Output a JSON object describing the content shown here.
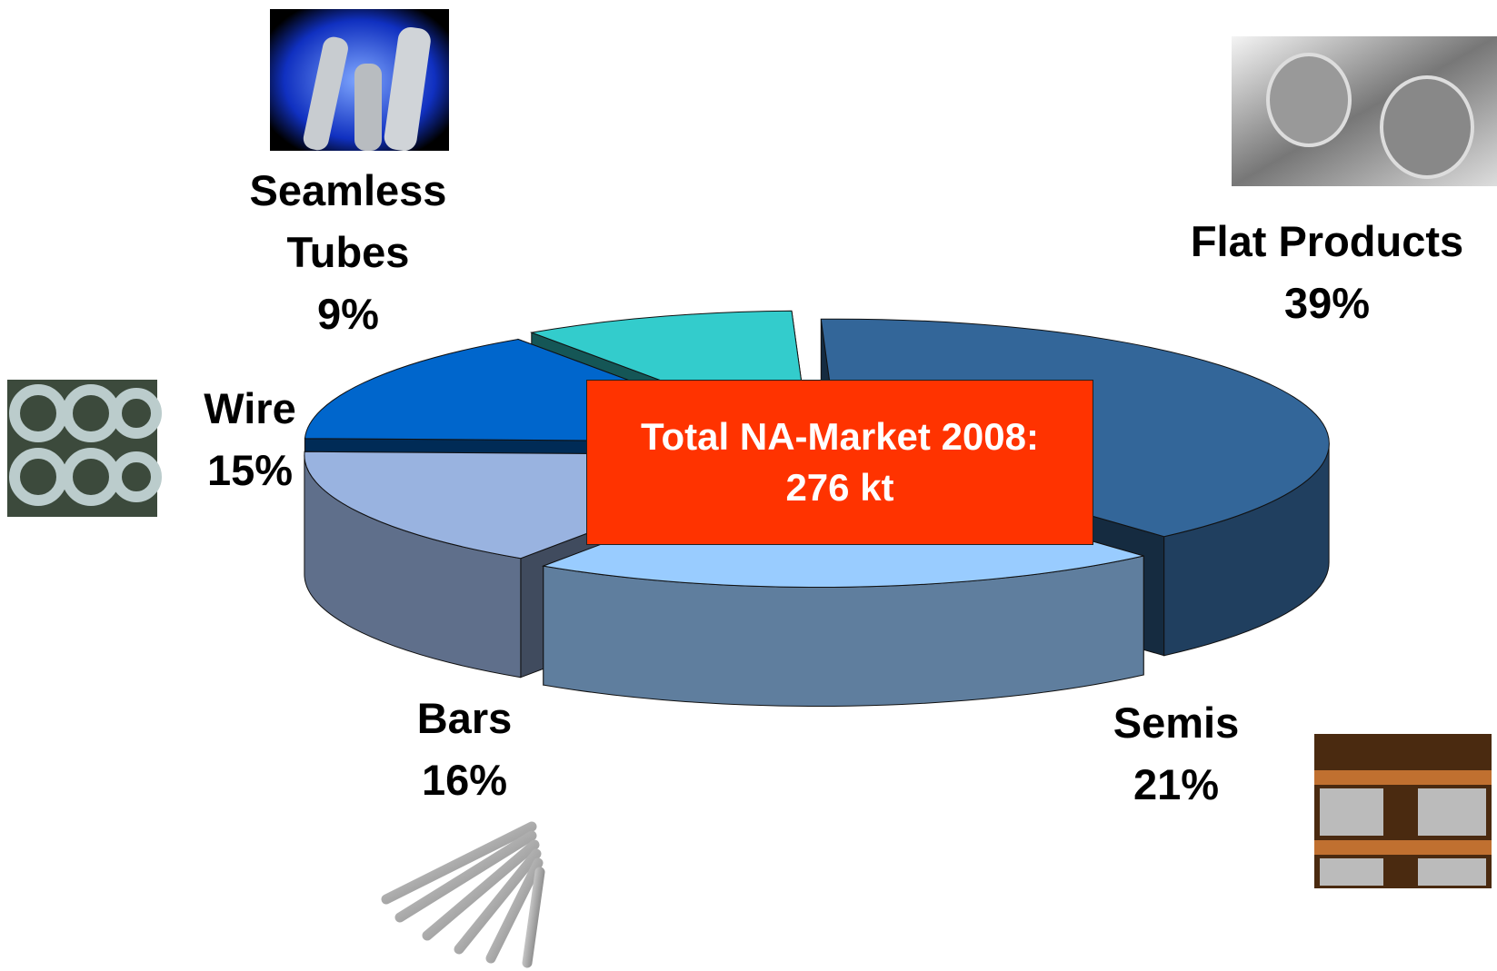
{
  "chart_data": {
    "type": "pie3d",
    "categories": [
      "Flat Products",
      "Semis",
      "Bars",
      "Wire",
      "Seamless Tubes"
    ],
    "values": [
      39,
      21,
      16,
      15,
      9
    ],
    "value_labels": [
      "39%",
      "21%",
      "16%",
      "15%",
      "9%"
    ],
    "colors": [
      "#336699",
      "#99ccff",
      "#99b3e0",
      "#0066cc",
      "#33cccc"
    ],
    "annotation": [
      "Total NA-Market 2008:",
      "276 kt"
    ]
  }
}
